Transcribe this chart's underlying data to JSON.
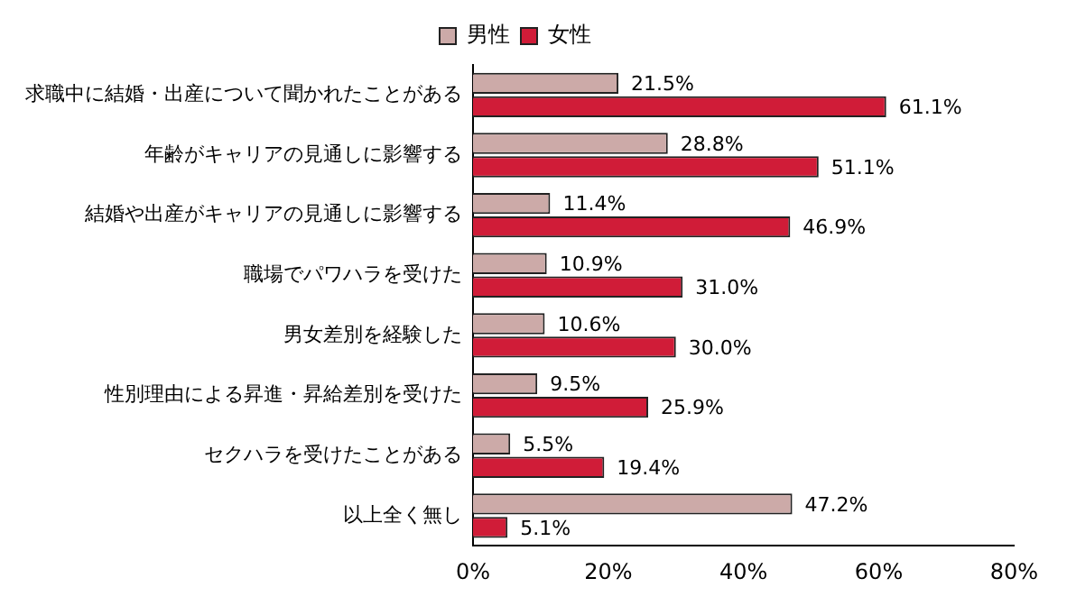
{
  "chart_data": {
    "type": "bar",
    "orientation": "horizontal",
    "categories": [
      "求職中に結婚・出産について聞かれたことがある",
      "年齢がキャリアの見通しに影響する",
      "結婚や出産がキャリアの見通しに影響する",
      "職場でパワハラを受けた",
      "男女差別を経験した",
      "性別理由による昇進・昇給差別を受けた",
      "セクハラを受けたことがある",
      "以上全く無し"
    ],
    "series": [
      {
        "name": "男性",
        "color": "#ccaaa8",
        "values": [
          21.5,
          28.8,
          11.4,
          10.9,
          10.6,
          9.5,
          5.5,
          47.2
        ],
        "value_labels": [
          "21.5%",
          "28.8%",
          "11.4%",
          "10.9%",
          "10.6%",
          "9.5%",
          "5.5%",
          "47.2%"
        ]
      },
      {
        "name": "女性",
        "color": "#d01c38",
        "values": [
          61.1,
          51.1,
          46.9,
          31.0,
          30.0,
          25.9,
          19.4,
          5.1
        ],
        "value_labels": [
          "61.1%",
          "51.1%",
          "46.9%",
          "31.0%",
          "30.0%",
          "25.9%",
          "19.4%",
          "5.1%"
        ]
      }
    ],
    "xlim": [
      0,
      80
    ],
    "xticks": [
      {
        "value": 0,
        "label": "0%"
      },
      {
        "value": 20,
        "label": "20%"
      },
      {
        "value": 40,
        "label": "40%"
      },
      {
        "value": 60,
        "label": "60%"
      },
      {
        "value": 80,
        "label": "80%"
      }
    ],
    "grid": false,
    "legend": "top"
  }
}
